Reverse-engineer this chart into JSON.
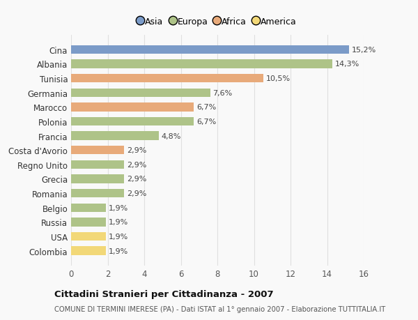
{
  "countries": [
    "Cina",
    "Albania",
    "Tunisia",
    "Germania",
    "Marocco",
    "Polonia",
    "Francia",
    "Costa d'Avorio",
    "Regno Unito",
    "Grecia",
    "Romania",
    "Belgio",
    "Russia",
    "USA",
    "Colombia"
  ],
  "values": [
    15.2,
    14.3,
    10.5,
    7.6,
    6.7,
    6.7,
    4.8,
    2.9,
    2.9,
    2.9,
    2.9,
    1.9,
    1.9,
    1.9,
    1.9
  ],
  "labels": [
    "15,2%",
    "14,3%",
    "10,5%",
    "7,6%",
    "6,7%",
    "6,7%",
    "4,8%",
    "2,9%",
    "2,9%",
    "2,9%",
    "2,9%",
    "1,9%",
    "1,9%",
    "1,9%",
    "1,9%"
  ],
  "colors": [
    "#7b9bc8",
    "#aec388",
    "#e8aa7a",
    "#aec388",
    "#e8aa7a",
    "#aec388",
    "#aec388",
    "#e8aa7a",
    "#aec388",
    "#aec388",
    "#aec388",
    "#aec388",
    "#aec388",
    "#f2d878",
    "#f2d878"
  ],
  "legend_labels": [
    "Asia",
    "Europa",
    "Africa",
    "America"
  ],
  "legend_colors": [
    "#7b9bc8",
    "#aec388",
    "#e8aa7a",
    "#f2d878"
  ],
  "title": "Cittadini Stranieri per Cittadinanza - 2007",
  "subtitle": "COMUNE DI TERMINI IMERESE (PA) - Dati ISTAT al 1° gennaio 2007 - Elaborazione TUTTITALIA.IT",
  "xlim": [
    0,
    16
  ],
  "xticks": [
    0,
    2,
    4,
    6,
    8,
    10,
    12,
    14,
    16
  ],
  "background_color": "#f9f9f9",
  "grid_color": "#e0e0e0",
  "bar_height": 0.6
}
